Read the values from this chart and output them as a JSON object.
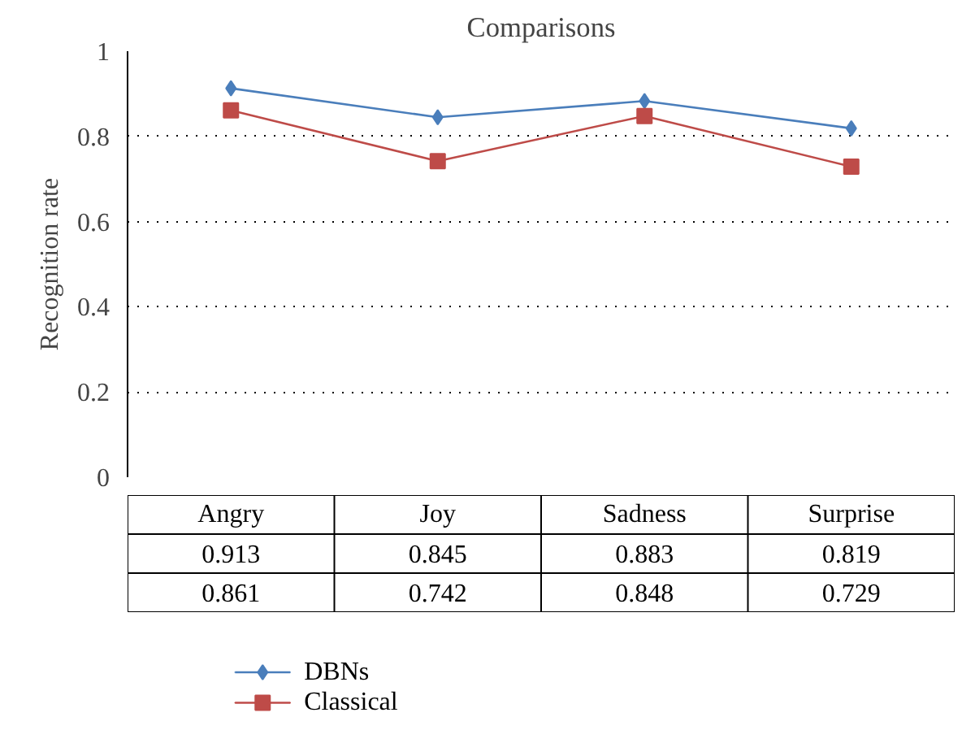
{
  "chart_data": {
    "type": "line",
    "title": "Comparisons",
    "ylabel": "Recognition rate",
    "categories": [
      "Angry",
      "Joy",
      "Sadness",
      "Surprise"
    ],
    "series": [
      {
        "name": "DBNs",
        "color": "#4a7ebb",
        "values": [
          0.913,
          0.845,
          0.883,
          0.819
        ],
        "marker": "diamond"
      },
      {
        "name": "Classical",
        "color": "#be4b48",
        "values": [
          0.861,
          0.742,
          0.848,
          0.729
        ],
        "marker": "square"
      }
    ],
    "ylim": [
      0,
      1
    ],
    "yticks": [
      0,
      0.2,
      0.4,
      0.6,
      0.8,
      1
    ],
    "grid": "y",
    "legend": "bottom left",
    "data_labels": true,
    "line_style": "solid"
  }
}
